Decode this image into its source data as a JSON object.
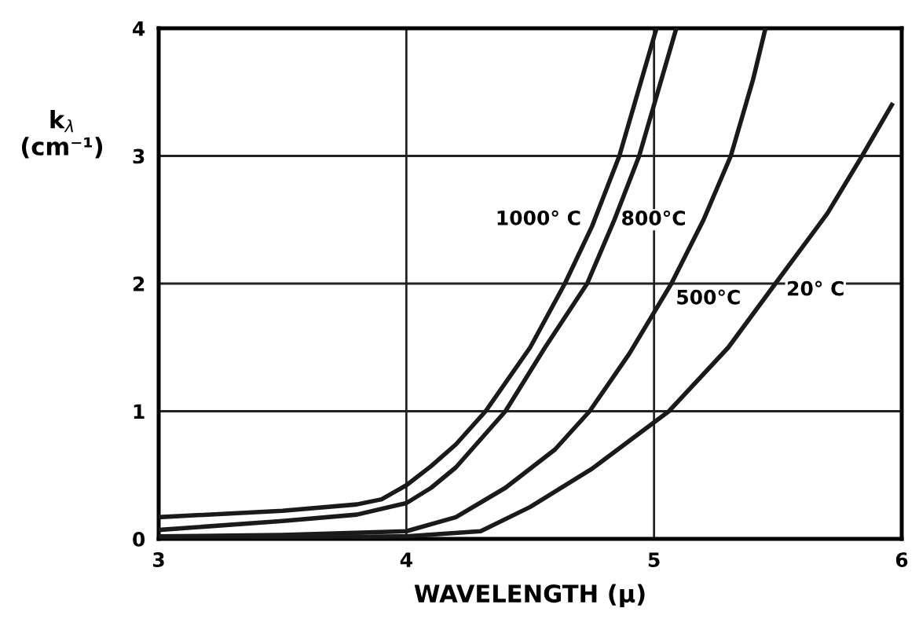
{
  "chart_data": {
    "type": "line",
    "xlabel": "WAVELENGTH (μ)",
    "ylabel": "k$_{λ}$\n(cm⁻¹)",
    "xlim": [
      3,
      6
    ],
    "ylim": [
      0,
      4
    ],
    "xticks": [
      3,
      4,
      5,
      6
    ],
    "yticks": [
      0,
      1,
      2,
      3,
      4
    ],
    "grid": true,
    "legend": false,
    "marker": "none",
    "line_style": "solid",
    "series": [
      {
        "name": "1000° C",
        "color": "#1a1a1a",
        "x": [
          3,
          3.5,
          3.8,
          3.9,
          4.0,
          4.1,
          4.2,
          4.32,
          4.5,
          4.64,
          4.75,
          4.86,
          5.01
        ],
        "values": [
          0.17,
          0.22,
          0.27,
          0.31,
          0.42,
          0.57,
          0.74,
          1.0,
          1.5,
          2.0,
          2.45,
          3.0,
          4.0
        ]
      },
      {
        "name": "800°C",
        "color": "#1a1a1a",
        "x": [
          3,
          3.5,
          3.8,
          4.0,
          4.1,
          4.2,
          4.4,
          4.56,
          4.73,
          4.84,
          4.94,
          5.09
        ],
        "values": [
          0.07,
          0.14,
          0.19,
          0.28,
          0.4,
          0.56,
          1.0,
          1.5,
          2.0,
          2.5,
          3.0,
          4.0
        ]
      },
      {
        "name": "500°C",
        "color": "#1a1a1a",
        "x": [
          3,
          3.5,
          4.0,
          4.2,
          4.4,
          4.6,
          4.74,
          4.9,
          5.07,
          5.2,
          5.31,
          5.4,
          5.45
        ],
        "values": [
          0.02,
          0.03,
          0.06,
          0.17,
          0.4,
          0.7,
          1.0,
          1.45,
          2.0,
          2.5,
          3.0,
          3.6,
          4.0
        ]
      },
      {
        "name": "20° C",
        "color": "#1a1a1a",
        "x": [
          3,
          4.0,
          4.3,
          4.5,
          4.75,
          5.06,
          5.3,
          5.49,
          5.7,
          5.84,
          5.96
        ],
        "values": [
          0.0,
          0.02,
          0.06,
          0.25,
          0.55,
          1.0,
          1.5,
          2.0,
          2.55,
          3.0,
          3.4
        ]
      }
    ]
  }
}
